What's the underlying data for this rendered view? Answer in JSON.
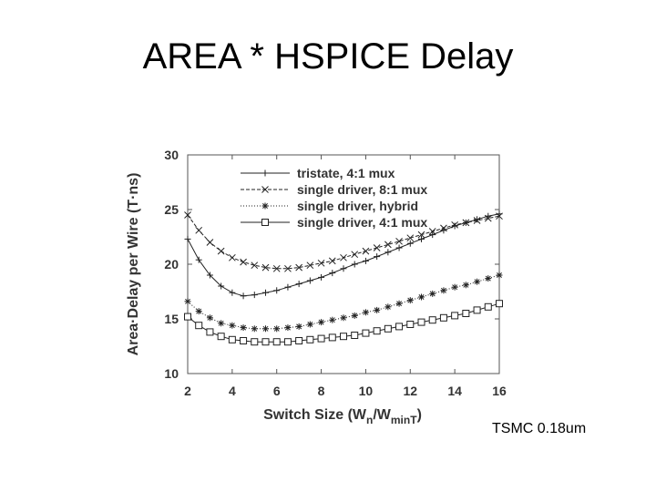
{
  "slide": {
    "title": "AREA * HSPICE Delay",
    "footnote": "TSMC 0.18um"
  },
  "chart_data": {
    "type": "line",
    "xlabel_main": "Switch Size (W",
    "xlabel_sub1": "n",
    "xlabel_mid": "/W",
    "xlabel_sub2": "minT",
    "xlabel_end": ")",
    "ylabel": "Area·Delay per Wire (T·ns)",
    "xlim": [
      2,
      16
    ],
    "ylim": [
      10,
      30
    ],
    "xticks": [
      2,
      4,
      6,
      8,
      10,
      12,
      14,
      16
    ],
    "yticks": [
      10,
      15,
      20,
      25,
      30
    ],
    "grid": false,
    "legend_position": "top-right",
    "x": [
      2.0,
      2.5,
      3.0,
      3.5,
      4.0,
      4.5,
      5.0,
      5.5,
      6.0,
      6.5,
      7.0,
      7.5,
      8.0,
      8.5,
      9.0,
      9.5,
      10.0,
      10.5,
      11.0,
      11.5,
      12.0,
      12.5,
      13.0,
      13.5,
      14.0,
      14.5,
      15.0,
      15.5,
      16.0
    ],
    "series": [
      {
        "name": "tristate, 4:1 mux",
        "marker": "plus",
        "dash": "",
        "values": [
          22.3,
          20.4,
          19.0,
          18.0,
          17.4,
          17.1,
          17.2,
          17.4,
          17.6,
          17.9,
          18.2,
          18.5,
          18.8,
          19.2,
          19.6,
          20.0,
          20.3,
          20.7,
          21.1,
          21.5,
          21.9,
          22.3,
          22.7,
          23.1,
          23.5,
          23.8,
          24.1,
          24.4,
          24.6
        ]
      },
      {
        "name": "single driver, 8:1 mux",
        "marker": "x",
        "dash": "4,2",
        "values": [
          24.5,
          23.1,
          22.0,
          21.2,
          20.6,
          20.2,
          19.9,
          19.7,
          19.6,
          19.6,
          19.7,
          19.9,
          20.1,
          20.3,
          20.6,
          20.9,
          21.2,
          21.5,
          21.8,
          22.1,
          22.4,
          22.7,
          23.0,
          23.3,
          23.6,
          23.8,
          24.0,
          24.2,
          24.4
        ]
      },
      {
        "name": "single driver, hybrid",
        "marker": "asterisk",
        "dash": "1,2",
        "values": [
          16.6,
          15.7,
          15.1,
          14.6,
          14.4,
          14.2,
          14.1,
          14.1,
          14.1,
          14.2,
          14.3,
          14.5,
          14.7,
          14.9,
          15.1,
          15.3,
          15.6,
          15.8,
          16.1,
          16.4,
          16.7,
          17.0,
          17.3,
          17.6,
          17.9,
          18.1,
          18.4,
          18.7,
          19.0
        ]
      },
      {
        "name": "single driver, 4:1 mux",
        "marker": "square",
        "dash": "",
        "values": [
          15.2,
          14.4,
          13.8,
          13.4,
          13.1,
          13.0,
          12.9,
          12.9,
          12.9,
          12.9,
          13.0,
          13.1,
          13.2,
          13.3,
          13.4,
          13.5,
          13.7,
          13.9,
          14.1,
          14.3,
          14.5,
          14.7,
          14.9,
          15.1,
          15.3,
          15.5,
          15.8,
          16.1,
          16.4
        ]
      }
    ]
  }
}
